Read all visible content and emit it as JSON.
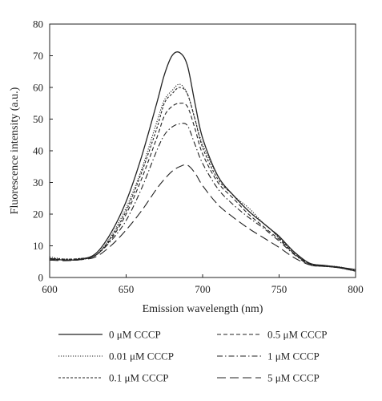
{
  "chart_data": {
    "type": "line",
    "xlabel": "Emission wavelength (nm)",
    "ylabel": "Fluorescence intensity (a.u.)",
    "xlim": [
      600,
      800
    ],
    "ylim": [
      0,
      80
    ],
    "xticks": [
      600,
      650,
      700,
      750,
      800
    ],
    "yticks": [
      0,
      10,
      20,
      30,
      40,
      50,
      60,
      70,
      80
    ],
    "grid": false,
    "legend_position": "bottom",
    "x": [
      600,
      610,
      620,
      630,
      640,
      650,
      660,
      670,
      675,
      680,
      685,
      690,
      695,
      700,
      710,
      720,
      730,
      740,
      745,
      750,
      760,
      770,
      780,
      790,
      800
    ],
    "series": [
      {
        "name": "0 μM CCCP",
        "dash": "solid",
        "values": [
          6.0,
          5.5,
          5.8,
          7.5,
          14,
          24,
          38,
          55,
          64,
          70,
          71,
          67,
          55,
          44,
          32,
          26,
          21,
          17,
          15,
          13,
          8,
          4.5,
          3.8,
          3.2,
          2.5
        ]
      },
      {
        "name": "0.01 μM CCCP",
        "dash": "dotted",
        "values": [
          6.5,
          5.8,
          6.0,
          7.0,
          13,
          22,
          34,
          49,
          56,
          59,
          61,
          58,
          50,
          42,
          32,
          26,
          22,
          17,
          15,
          12.5,
          8,
          4.5,
          3.8,
          3.3,
          2.2
        ]
      },
      {
        "name": "0.1 μM CCCP",
        "dash": "short-dash",
        "values": [
          6.0,
          5.8,
          6.0,
          7.0,
          12.5,
          21,
          33,
          47,
          55,
          58,
          60,
          58,
          50,
          41,
          31,
          26,
          21,
          17,
          15,
          12.5,
          7.5,
          4.3,
          3.7,
          3.2,
          2.0
        ]
      },
      {
        "name": "0.5 μM CCCP",
        "dash": "dash",
        "values": [
          5.8,
          5.5,
          5.8,
          7.0,
          12,
          20,
          31,
          44,
          51,
          54,
          55,
          54,
          47,
          39,
          30,
          25,
          20,
          16,
          14,
          12,
          7.5,
          4.3,
          3.6,
          3.0,
          2.0
        ]
      },
      {
        "name": "1 μM CCCP",
        "dash": "dash-dot",
        "values": [
          5.8,
          5.5,
          5.6,
          7.0,
          11.5,
          18,
          28,
          40,
          45,
          47.5,
          48.5,
          48,
          42,
          36,
          28,
          23,
          19,
          15.5,
          13.5,
          11.5,
          7.2,
          4.0,
          3.5,
          3.0,
          2.0
        ]
      },
      {
        "name": "5 μM CCCP",
        "dash": "long-dash",
        "values": [
          5.5,
          5.3,
          5.6,
          6.5,
          10,
          15,
          21,
          28,
          31,
          33.5,
          35,
          35.5,
          33,
          29,
          23,
          19,
          15.5,
          12.5,
          11,
          9.5,
          6.2,
          4.0,
          3.5,
          3.0,
          2.0
        ]
      }
    ]
  }
}
